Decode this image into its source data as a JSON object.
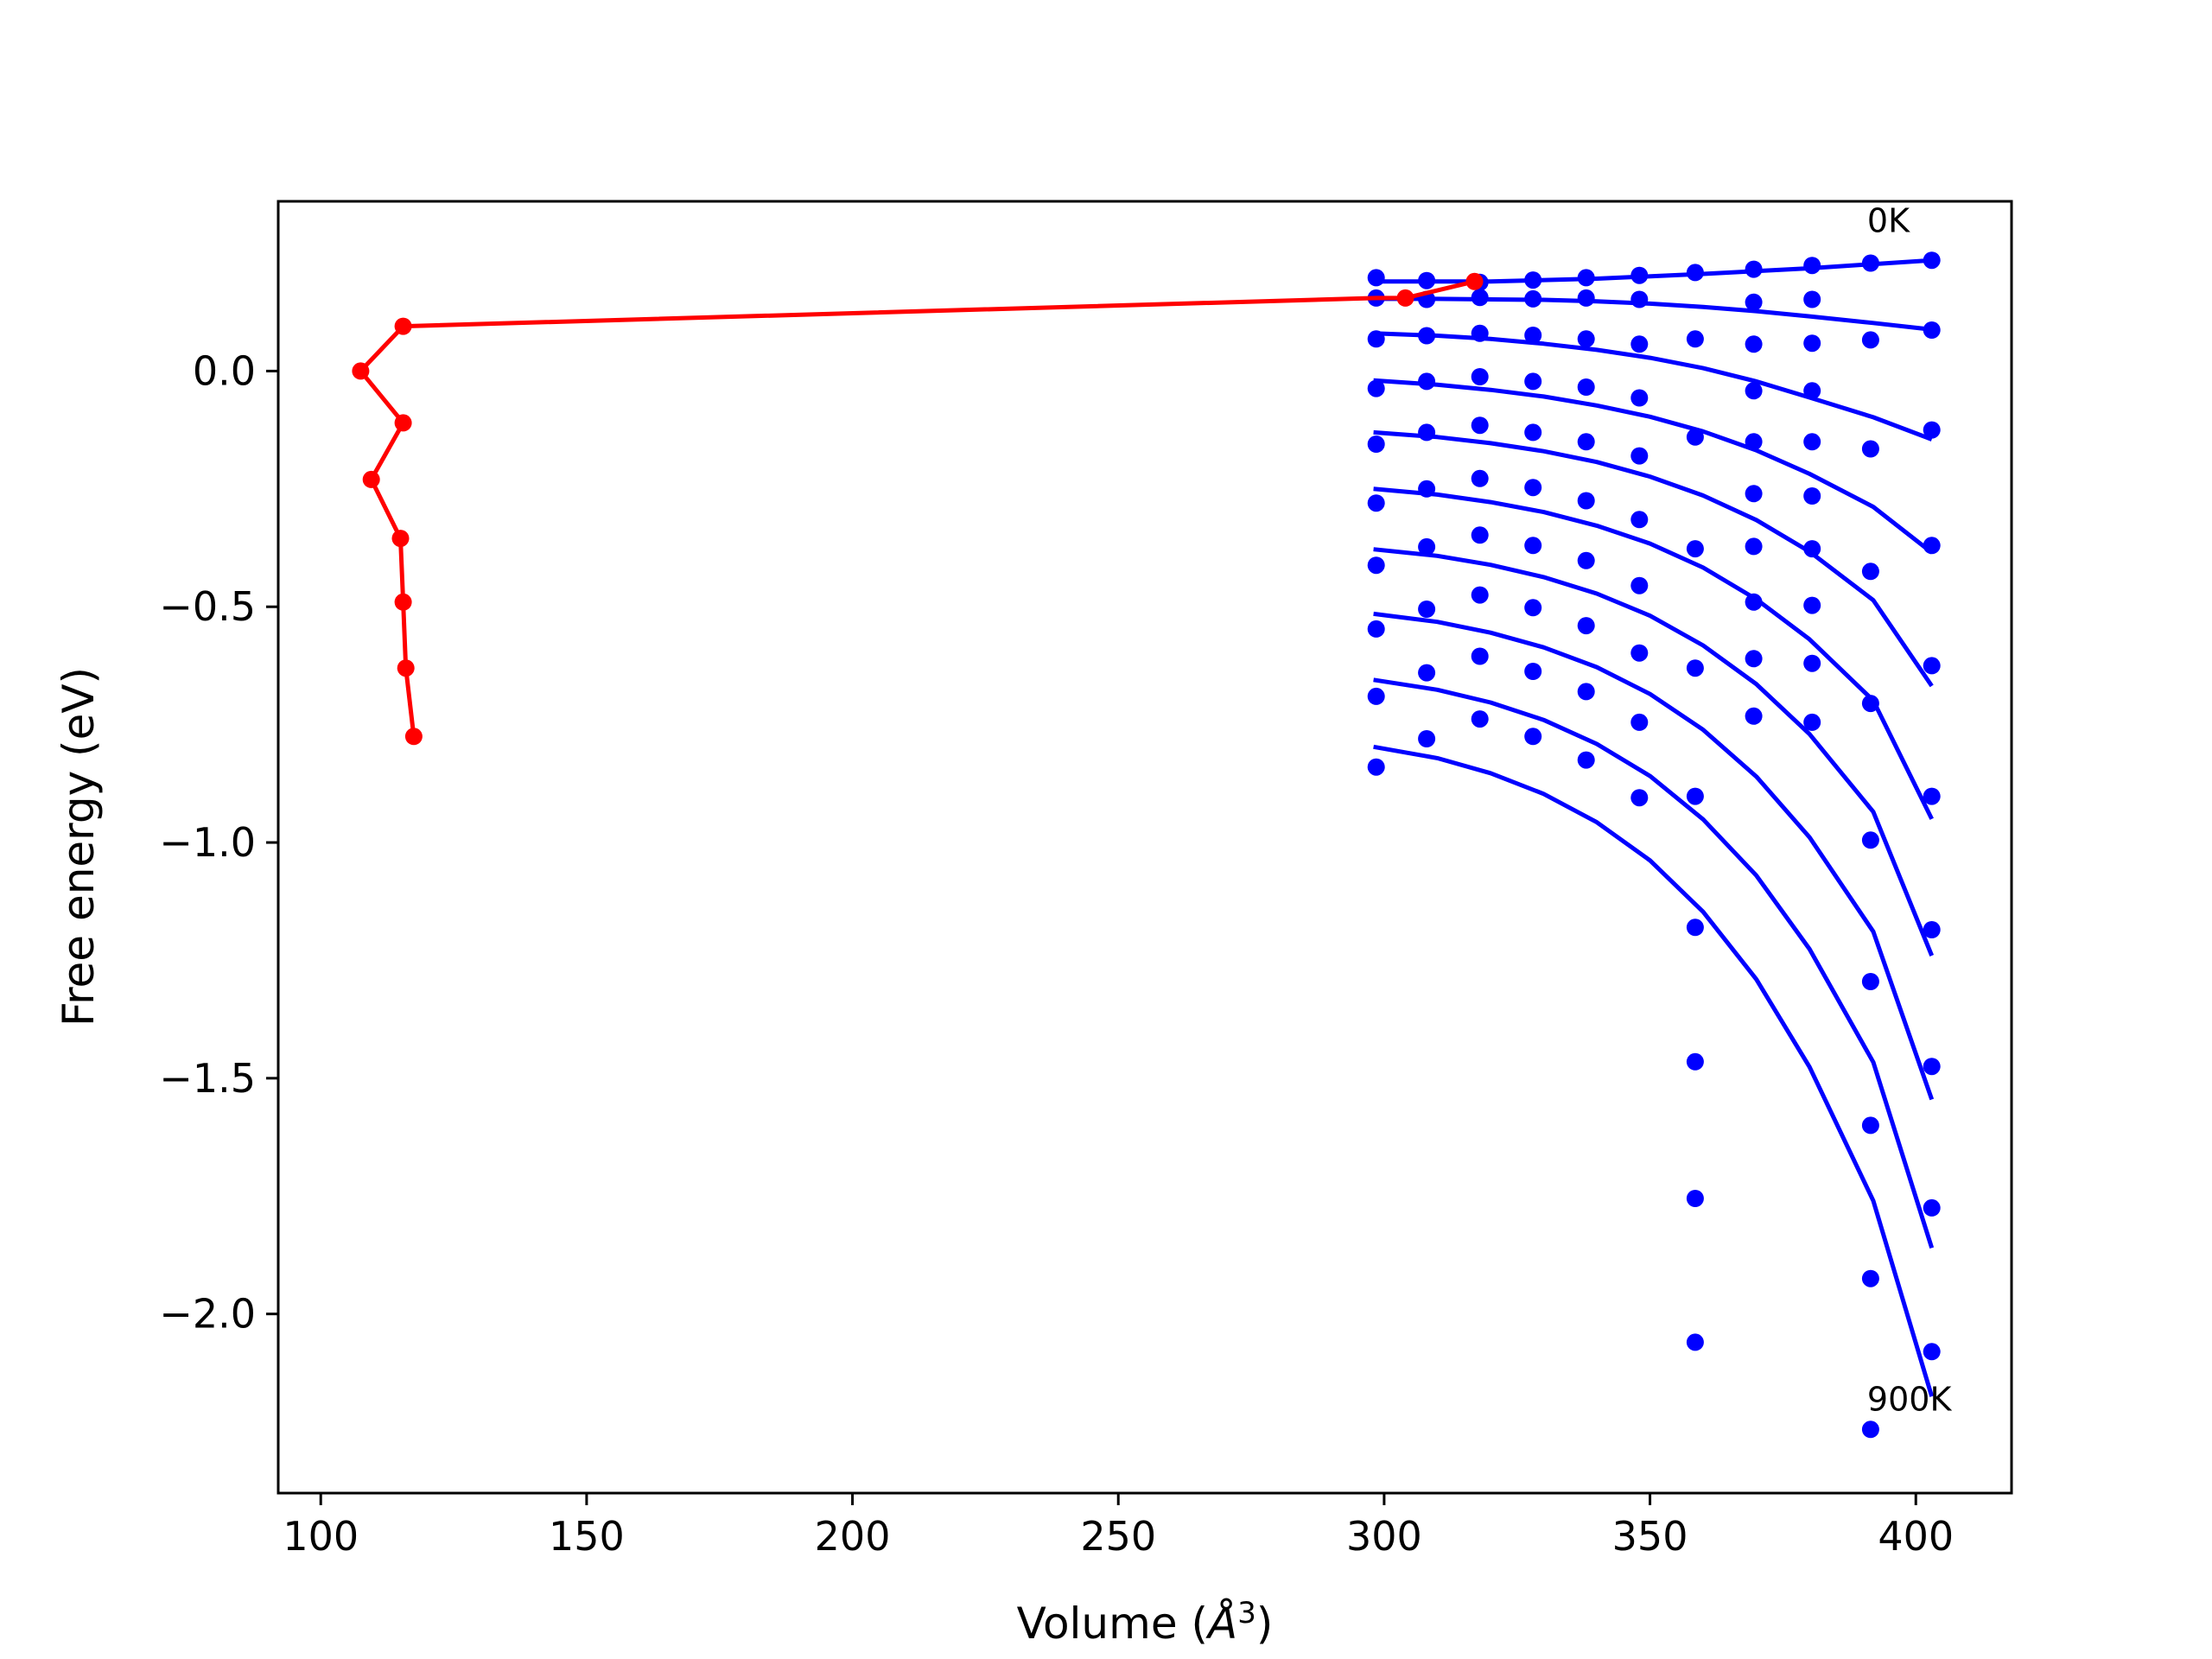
{
  "chart_data": {
    "type": "scatter",
    "title": "",
    "xlabel": "Volume (",
    "xlabel_unit": "Å",
    "xlabel_exp": "3",
    "xlabel_close": ")",
    "ylabel": "Free energy (eV)",
    "xlim": [
      92,
      418
    ],
    "ylim": [
      -2.38,
      0.36
    ],
    "xticks": [
      100,
      150,
      200,
      250,
      300,
      350,
      400
    ],
    "xtick_labels": [
      "100",
      "150",
      "200",
      "250",
      "300",
      "350",
      "400"
    ],
    "yticks": [
      0.0,
      -0.5,
      -1.0,
      -1.5,
      -2.0
    ],
    "ytick_labels": [
      "0.0",
      "−0.5",
      "−1.0",
      "−1.5",
      "−2.0"
    ],
    "grid": false,
    "colors": {
      "points": "#0000ff",
      "fits": "#0000ff",
      "path": "#ff0000",
      "axes": "#000000"
    },
    "annotations": [
      {
        "text": "0K",
        "x": 391.5,
        "y": 0.295
      },
      {
        "text": "900K",
        "x": 391.5,
        "y": -2.205
      }
    ],
    "volumes": [
      298.5,
      308.0,
      318.0,
      328.0,
      338.0,
      348.0,
      358.5,
      369.5,
      380.5,
      391.5,
      403.0
    ],
    "points": [
      [
        0.198,
        0.192,
        0.188,
        0.193,
        0.198,
        0.203,
        0.209,
        0.216,
        0.224,
        0.229,
        0.235
      ],
      [
        0.155,
        0.152,
        0.156,
        0.153,
        0.155,
        0.152,
        null,
        0.146,
        0.152,
        null,
        0.087
      ],
      [
        0.068,
        0.075,
        0.08,
        0.076,
        0.068,
        0.057,
        0.068,
        0.057,
        0.059,
        0.066,
        -0.125
      ],
      [
        -0.037,
        -0.022,
        -0.012,
        -0.022,
        -0.034,
        -0.057,
        -0.14,
        -0.042,
        -0.042,
        -0.165,
        -0.37
      ],
      [
        -0.155,
        -0.13,
        -0.115,
        -0.13,
        -0.15,
        -0.18,
        -0.377,
        -0.15,
        -0.15,
        -0.425,
        -0.625
      ],
      [
        -0.28,
        -0.25,
        -0.228,
        -0.247,
        -0.275,
        -0.315,
        -0.63,
        -0.26,
        -0.265,
        -0.705,
        -0.902
      ],
      [
        -0.412,
        -0.373,
        -0.348,
        -0.37,
        -0.402,
        -0.455,
        -0.902,
        -0.372,
        -0.377,
        -0.995,
        -1.185
      ],
      [
        -0.547,
        -0.505,
        -0.475,
        -0.502,
        -0.54,
        -0.598,
        -1.18,
        -0.49,
        -0.497,
        -1.295,
        -1.475
      ],
      [
        -0.69,
        -0.64,
        -0.605,
        -0.637,
        -0.68,
        -0.745,
        -1.465,
        -0.61,
        -0.62,
        -1.6,
        -1.775
      ],
      [
        -0.84,
        -0.78,
        -0.738,
        -0.775,
        -0.825,
        -0.905,
        -1.755,
        -0.732,
        -0.745,
        -1.925,
        -2.08
      ],
      [
        null,
        null,
        null,
        null,
        null,
        null,
        -2.06,
        null,
        null,
        -2.245,
        null
      ]
    ],
    "fits": [
      {
        "x": [
          298,
          320,
          340,
          360,
          380,
          403
        ],
        "y": [
          0.19,
          0.19,
          0.196,
          0.206,
          0.218,
          0.235
        ]
      },
      {
        "x": [
          298,
          310,
          320,
          330,
          340,
          350,
          360,
          370,
          380,
          392,
          403
        ],
        "y": [
          0.153,
          0.153,
          0.152,
          0.151,
          0.148,
          0.143,
          0.136,
          0.127,
          0.116,
          0.102,
          0.088
        ]
      },
      {
        "x": [
          298,
          310,
          320,
          330,
          340,
          350,
          360,
          370,
          380,
          392,
          403
        ],
        "y": [
          0.08,
          0.075,
          0.068,
          0.058,
          0.045,
          0.028,
          0.006,
          -0.022,
          -0.056,
          -0.098,
          -0.145
        ]
      },
      {
        "x": [
          298,
          310,
          320,
          330,
          340,
          350,
          360,
          370,
          380,
          392,
          403
        ],
        "y": [
          -0.02,
          -0.029,
          -0.04,
          -0.054,
          -0.073,
          -0.097,
          -0.128,
          -0.168,
          -0.218,
          -0.288,
          -0.385
        ]
      },
      {
        "x": [
          298,
          310,
          320,
          330,
          340,
          350,
          360,
          370,
          380,
          392,
          403
        ],
        "y": [
          -0.13,
          -0.14,
          -0.153,
          -0.17,
          -0.193,
          -0.224,
          -0.264,
          -0.316,
          -0.383,
          -0.486,
          -0.668
        ]
      },
      {
        "x": [
          298,
          310,
          320,
          330,
          340,
          350,
          360,
          370,
          380,
          392,
          403
        ],
        "y": [
          -0.25,
          -0.262,
          -0.278,
          -0.299,
          -0.328,
          -0.366,
          -0.417,
          -0.484,
          -0.569,
          -0.699,
          -0.95
        ]
      },
      {
        "x": [
          298,
          310,
          320,
          330,
          340,
          350,
          360,
          370,
          380,
          392,
          403
        ],
        "y": [
          -0.378,
          -0.392,
          -0.411,
          -0.437,
          -0.472,
          -0.519,
          -0.582,
          -0.664,
          -0.77,
          -0.935,
          -1.24
        ]
      },
      {
        "x": [
          298,
          310,
          320,
          330,
          340,
          350,
          360,
          370,
          380,
          392,
          403
        ],
        "y": [
          -0.515,
          -0.532,
          -0.555,
          -0.586,
          -0.628,
          -0.685,
          -0.761,
          -0.86,
          -0.989,
          -1.189,
          -1.545
        ]
      },
      {
        "x": [
          298,
          310,
          320,
          330,
          340,
          350,
          360,
          370,
          380,
          392,
          403
        ],
        "y": [
          -0.655,
          -0.676,
          -0.703,
          -0.74,
          -0.791,
          -0.859,
          -0.951,
          -1.07,
          -1.226,
          -1.466,
          -1.86
        ]
      },
      {
        "x": [
          298,
          310,
          320,
          330,
          340,
          350,
          360,
          370,
          380,
          392,
          403
        ],
        "y": [
          -0.797,
          -0.821,
          -0.853,
          -0.897,
          -0.957,
          -1.038,
          -1.147,
          -1.29,
          -1.476,
          -1.76,
          -2.175
        ]
      }
    ],
    "path": {
      "x": [
        317,
        304,
        298.5,
        115.5,
        107.5,
        115.5,
        109.5,
        115,
        115.5,
        116,
        117.5
      ],
      "y": [
        0.19,
        0.155,
        0.155,
        0.095,
        0.0,
        -0.11,
        -0.23,
        -0.355,
        -0.49,
        -0.63,
        -0.775
      ],
      "marked": [
        true,
        true,
        false,
        true,
        true,
        true,
        true,
        true,
        true,
        true,
        true
      ]
    }
  }
}
